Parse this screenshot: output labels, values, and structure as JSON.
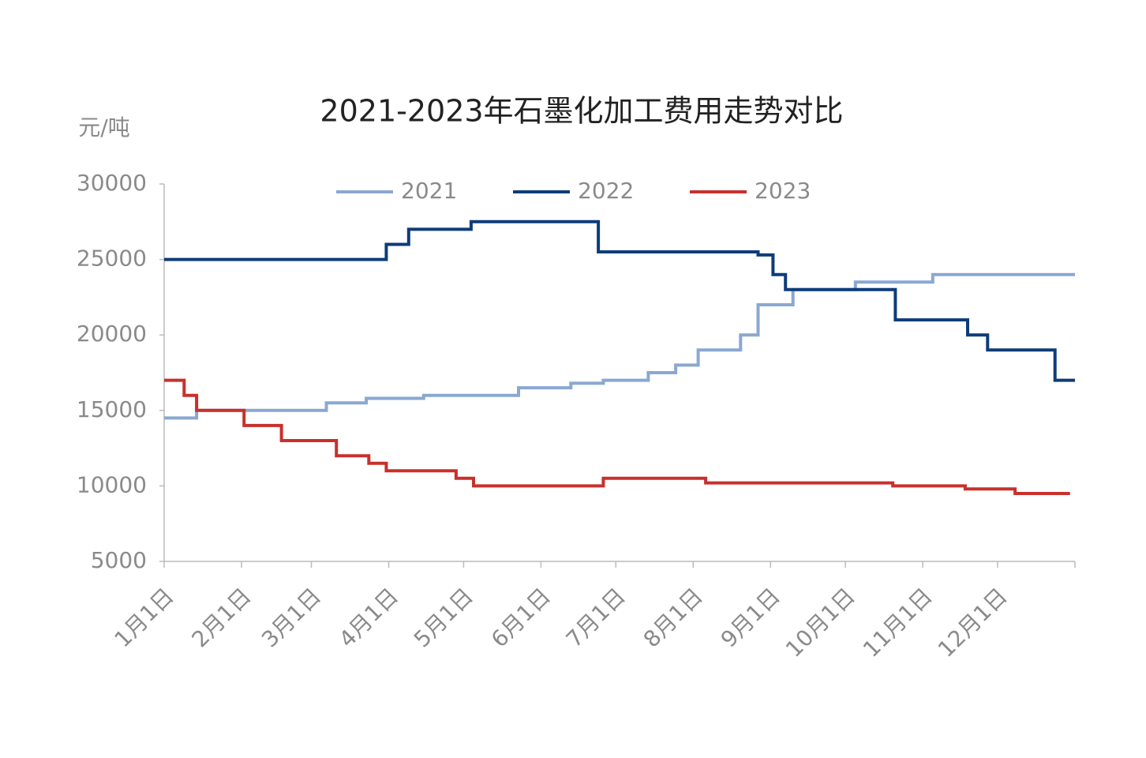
{
  "chart_data": {
    "type": "line",
    "title": "2021-2023年石墨化加工费用走势对比",
    "y_label": "元/吨",
    "xlim": [
      0,
      365
    ],
    "xticks": [
      {
        "value": 0,
        "label": "1月1日"
      },
      {
        "value": 31,
        "label": "2月1日"
      },
      {
        "value": 59,
        "label": "3月1日"
      },
      {
        "value": 90,
        "label": "4月1日"
      },
      {
        "value": 120,
        "label": "5月1日"
      },
      {
        "value": 151,
        "label": "6月1日"
      },
      {
        "value": 181,
        "label": "7月1日"
      },
      {
        "value": 212,
        "label": "8月1日"
      },
      {
        "value": 243,
        "label": "9月1日"
      },
      {
        "value": 273,
        "label": "10月1日"
      },
      {
        "value": 304,
        "label": "11月1日"
      },
      {
        "value": 334,
        "label": "12月1日"
      }
    ],
    "ylim": [
      5000,
      30000
    ],
    "yticks": [
      5000,
      10000,
      15000,
      20000,
      25000,
      30000
    ],
    "grid": false,
    "legend": "top",
    "series": [
      {
        "name": "2021",
        "color": "#8aa8d0",
        "x": [
          0,
          13,
          13,
          65,
          65,
          81,
          81,
          104,
          104,
          142,
          142,
          163,
          163,
          176,
          176,
          194,
          194,
          205,
          205,
          214,
          214,
          231,
          231,
          238,
          238,
          252,
          252,
          277,
          277,
          308,
          308,
          365
        ],
        "values": [
          14500,
          14500,
          15000,
          15000,
          15500,
          15500,
          15800,
          15800,
          16000,
          16000,
          16500,
          16500,
          16800,
          16800,
          17000,
          17000,
          17500,
          17500,
          18000,
          18000,
          19000,
          19000,
          20000,
          20000,
          22000,
          22000,
          23000,
          23000,
          23500,
          23500,
          24000,
          24000
        ]
      },
      {
        "name": "2022",
        "color": "#0d3c7a",
        "x": [
          0,
          89,
          89,
          98,
          98,
          123,
          123,
          174,
          174,
          238,
          238,
          244,
          244,
          249,
          249,
          293,
          293,
          322,
          322,
          330,
          330,
          357,
          357,
          365
        ],
        "values": [
          25000,
          25000,
          26000,
          26000,
          27000,
          27000,
          27500,
          27500,
          25500,
          25500,
          25300,
          25300,
          24000,
          24000,
          23000,
          23000,
          21000,
          21000,
          20000,
          20000,
          19000,
          19000,
          17000,
          17000
        ]
      },
      {
        "name": "2023",
        "color": "#c8302c",
        "x": [
          0,
          8,
          8,
          13,
          13,
          32,
          32,
          47,
          47,
          69,
          69,
          82,
          82,
          89,
          89,
          117,
          117,
          124,
          124,
          176,
          176,
          217,
          217,
          292,
          292,
          321,
          321,
          341,
          341,
          363
        ],
        "values": [
          17000,
          17000,
          16000,
          16000,
          15000,
          15000,
          14000,
          14000,
          13000,
          13000,
          12000,
          12000,
          11500,
          11500,
          11000,
          11000,
          10500,
          10500,
          10000,
          10000,
          10500,
          10500,
          10200,
          10200,
          10000,
          10000,
          9800,
          9800,
          9500,
          9500
        ]
      }
    ]
  }
}
